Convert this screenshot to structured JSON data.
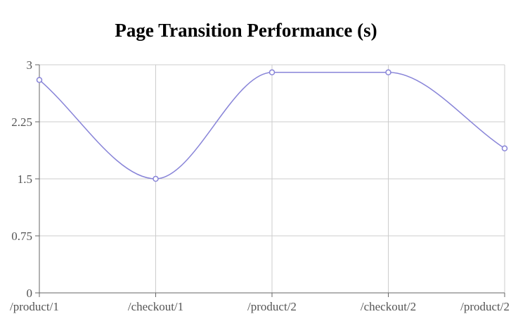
{
  "chart_data": {
    "type": "line",
    "title": "Page Transition Performance (s)",
    "categories": [
      "/product/1",
      "/checkout/1",
      "/product/2",
      "/checkout/2",
      "/product/2"
    ],
    "series": [
      {
        "values": [
          2.8,
          1.5,
          2.9,
          2.9,
          1.9
        ]
      }
    ],
    "y_ticks": [
      "0",
      "0.75",
      "1.5",
      "2.25",
      "3"
    ],
    "ylim": [
      0,
      3
    ],
    "grid": true,
    "line_color": "#8884d8"
  }
}
